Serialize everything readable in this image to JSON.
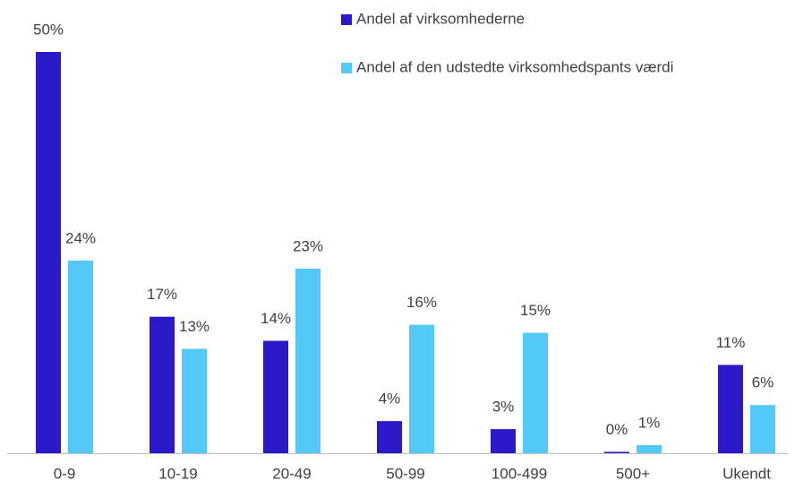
{
  "chart_data": {
    "type": "bar",
    "categories": [
      "0-9",
      "10-19",
      "20-49",
      "50-99",
      "100-499",
      "500+",
      "Ukendt"
    ],
    "series": [
      {
        "name": "Andel af virksomhederne",
        "color": "#2b18c9",
        "values": [
          50,
          17,
          14,
          4,
          3,
          0,
          11
        ],
        "value_labels": [
          "50%",
          "17%",
          "14%",
          "4%",
          "3%",
          "0%",
          "11%"
        ]
      },
      {
        "name": "Andel af den udstedte virksomhedspants værdi",
        "color": "#52c9f7",
        "values": [
          24,
          13,
          23,
          16,
          15,
          1,
          6
        ],
        "value_labels": [
          "24%",
          "13%",
          "23%",
          "16%",
          "15%",
          "1%",
          "6%"
        ]
      }
    ]
  }
}
